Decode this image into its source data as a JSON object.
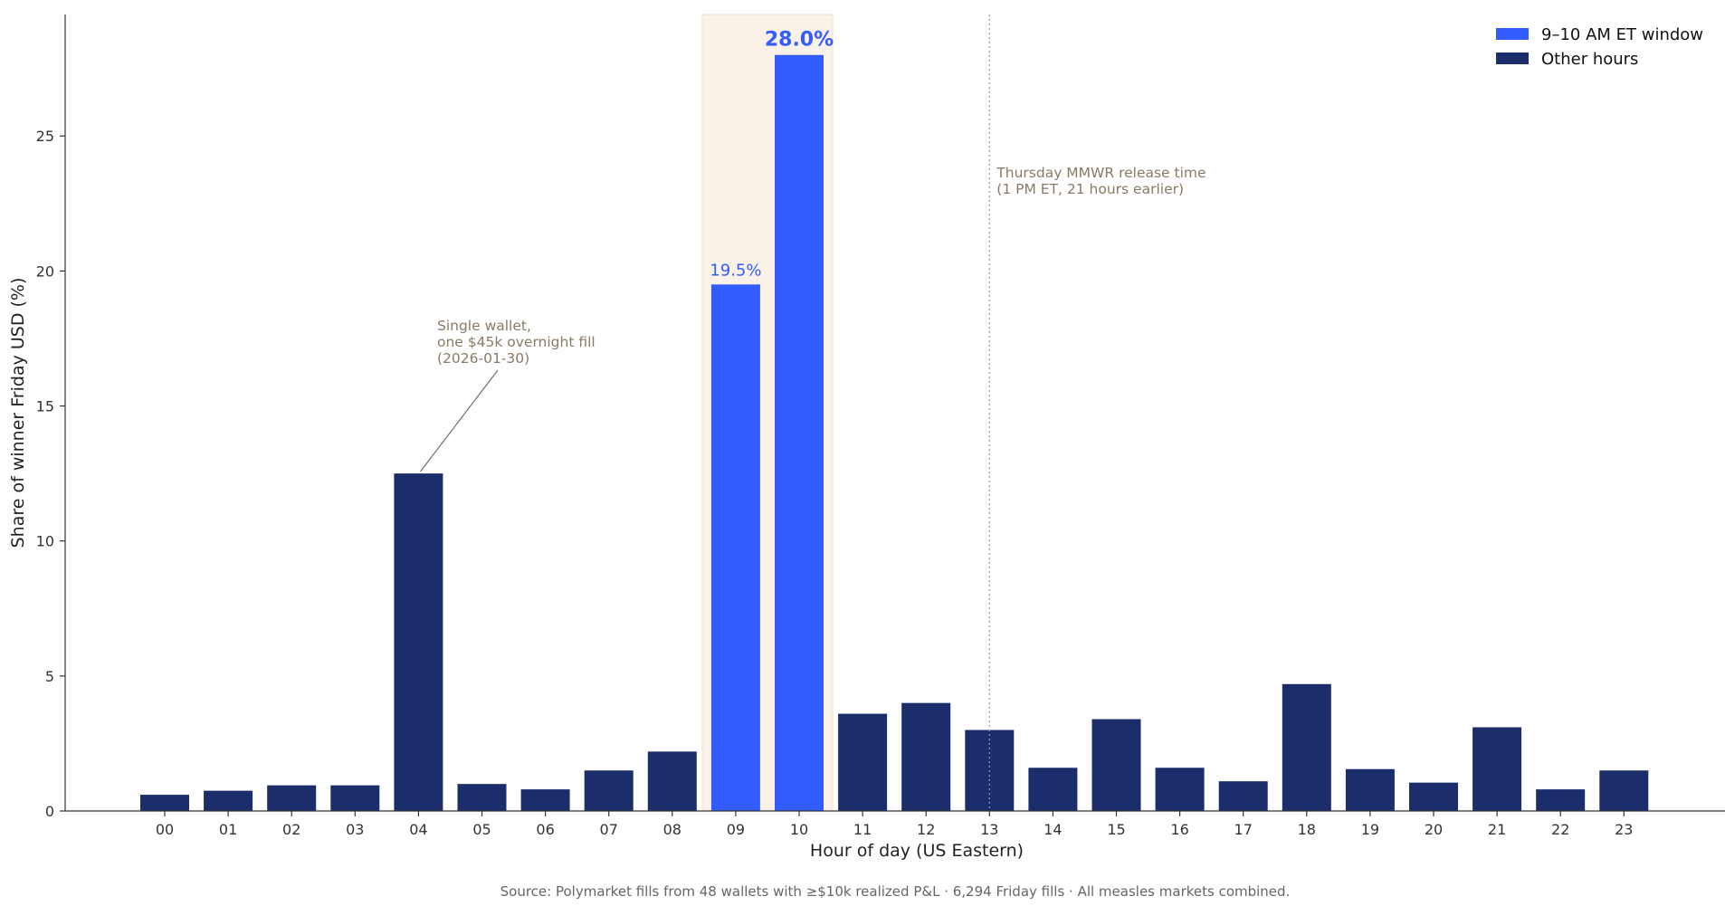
{
  "chart_data": {
    "type": "bar",
    "xlabel": "Hour of day (US Eastern)",
    "ylabel": "Share of winner Friday USD (%)",
    "ylim": [
      0,
      29.5
    ],
    "yticks": [
      0,
      5,
      10,
      15,
      20,
      25
    ],
    "grid": false,
    "legend_position": "top-right",
    "categories": [
      "00",
      "01",
      "02",
      "03",
      "04",
      "05",
      "06",
      "07",
      "08",
      "09",
      "10",
      "11",
      "12",
      "13",
      "14",
      "15",
      "16",
      "17",
      "18",
      "19",
      "20",
      "21",
      "22",
      "23"
    ],
    "values": [
      0.6,
      0.75,
      0.95,
      0.95,
      12.5,
      1.0,
      0.8,
      1.5,
      2.2,
      19.5,
      28.0,
      3.6,
      4.0,
      3.0,
      1.6,
      3.4,
      1.6,
      1.1,
      4.7,
      1.55,
      1.05,
      3.1,
      0.8,
      1.5
    ],
    "highlight_categories": [
      "09",
      "10"
    ],
    "highlight_color": "#335cff",
    "other_color": "#1b2d6b",
    "window_shade_color": "#faf1e8",
    "legend": [
      {
        "label": "9–10 AM ET window",
        "color": "#335cff"
      },
      {
        "label": "Other hours",
        "color": "#1b2d6b"
      }
    ],
    "data_labels": [
      {
        "category": "09",
        "text": "19.5%"
      },
      {
        "category": "10",
        "text": "28.0%"
      }
    ],
    "vline": {
      "x": "13",
      "style": "dotted",
      "label_lines": [
        "Thursday MMWR release time",
        "(1 PM ET, 21 hours earlier)"
      ]
    },
    "annotation": {
      "target_category": "04",
      "target_value": 12.5,
      "text_lines": [
        "Single wallet,",
        "one $45k overnight fill",
        "(2026-01-30)"
      ]
    },
    "source": "Source: Polymarket fills from 48 wallets with ≥$10k realized P&L · 6,294 Friday fills · All measles markets combined."
  }
}
